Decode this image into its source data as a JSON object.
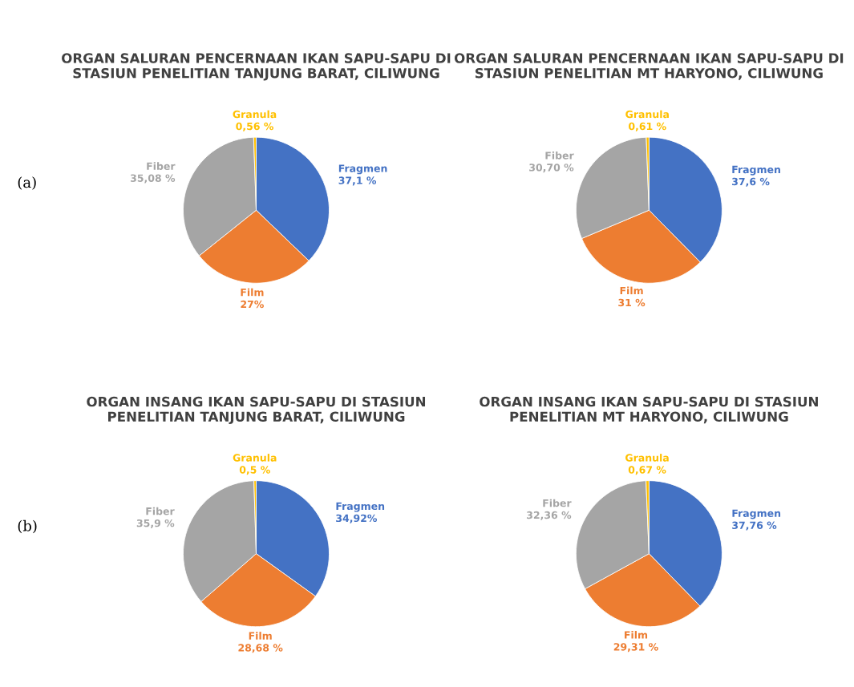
{
  "chart_data": [
    {
      "type": "pie",
      "title": "ORGAN SALURAN PENCERNAAN IKAN SAPU-SAPU DI STASIUN PENELITIAN TANJUNG BARAT, CILIWUNG",
      "annotations": [
        "(a)"
      ],
      "categories": [
        "Fragmen",
        "Film",
        "Fiber",
        "Granula"
      ],
      "values": [
        37.1,
        27,
        35.08,
        0.56
      ],
      "value_labels": [
        "37,1 %",
        "27%",
        "35,08 %",
        "0,56 %"
      ],
      "colors": [
        "#4472c4",
        "#ed7d31",
        "#a5a5a5",
        "#ffc000"
      ]
    },
    {
      "type": "pie",
      "title": "ORGAN SALURAN PENCERNAAN IKAN SAPU-SAPU DI STASIUN PENELITIAN MT HARYONO, CILIWUNG",
      "categories": [
        "Fragmen",
        "Film",
        "Fiber",
        "Granula"
      ],
      "values": [
        37.6,
        31,
        30.7,
        0.61
      ],
      "value_labels": [
        "37,6 %",
        "31 %",
        "30,70 %",
        "0,61 %"
      ],
      "colors": [
        "#4472c4",
        "#ed7d31",
        "#a5a5a5",
        "#ffc000"
      ]
    },
    {
      "type": "pie",
      "title": "ORGAN INSANG IKAN SAPU-SAPU DI STASIUN PENELITIAN TANJUNG BARAT, CILIWUNG",
      "annotations": [
        "(b)"
      ],
      "categories": [
        "Fragmen",
        "Film",
        "Fiber",
        "Granula"
      ],
      "values": [
        34.92,
        28.68,
        35.9,
        0.5
      ],
      "value_labels": [
        "34,92%",
        "28,68 %",
        "35,9 %",
        "0,5 %"
      ],
      "colors": [
        "#4472c4",
        "#ed7d31",
        "#a5a5a5",
        "#ffc000"
      ]
    },
    {
      "type": "pie",
      "title": "ORGAN INSANG IKAN SAPU-SAPU DI STASIUN PENELITIAN MT HARYONO, CILIWUNG",
      "categories": [
        "Fragmen",
        "Film",
        "Fiber",
        "Granula"
      ],
      "values": [
        37.76,
        29.31,
        32.36,
        0.67
      ],
      "value_labels": [
        "37,76 %",
        "29,31 %",
        "32,36 %",
        "0,67 %"
      ],
      "colors": [
        "#4472c4",
        "#ed7d31",
        "#a5a5a5",
        "#ffc000"
      ]
    }
  ]
}
